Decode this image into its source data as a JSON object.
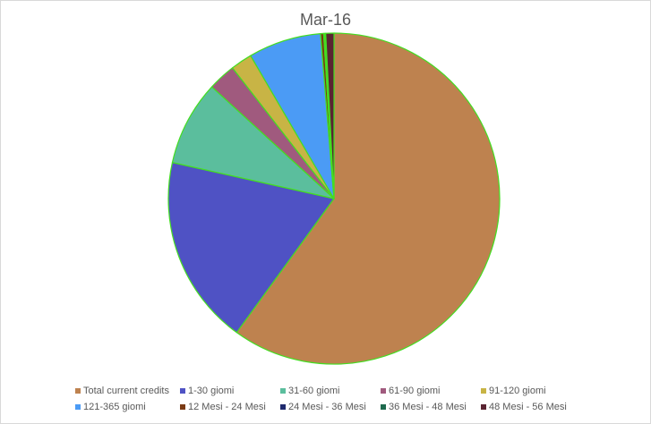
{
  "chart_data": {
    "type": "pie",
    "title": "Mar-16",
    "slices": [
      {
        "label": "Total current credits",
        "value": 60.0,
        "color": "#BE824F"
      },
      {
        "label": "1-30 giomi",
        "value": 18.5,
        "color": "#4F52C4"
      },
      {
        "label": "31-60 giomi",
        "value": 8.3,
        "color": "#5BBE9D"
      },
      {
        "label": "61-90 giomi",
        "value": 2.7,
        "color": "#A05A7E"
      },
      {
        "label": "91-120 giomi",
        "value": 2.1,
        "color": "#C8B445"
      },
      {
        "label": "121-365 giomi",
        "value": 7.1,
        "color": "#4B9BF5"
      },
      {
        "label": "12 Mesi - 24 Mesi",
        "value": 0.3,
        "color": "#7A3A14"
      },
      {
        "label": "24 Mesi - 36 Mesi",
        "value": 0.1,
        "color": "#1F2A6E"
      },
      {
        "label": "36 Mesi - 48 Mesi",
        "value": 0.1,
        "color": "#1E6A4E"
      },
      {
        "label": "48 Mesi - 56 Mesi",
        "value": 0.8,
        "color": "#5A2432"
      }
    ],
    "slice_border_color": "#44DD22",
    "legend_position": "bottom"
  }
}
